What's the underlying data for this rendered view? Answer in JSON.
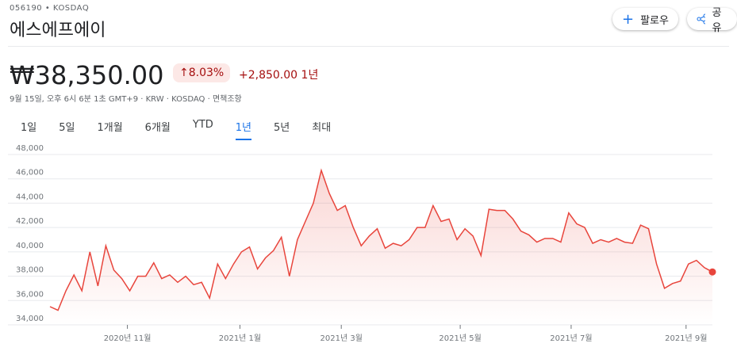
{
  "header": {
    "ticker": "056190 • KOSDAQ",
    "name": "에스에프에이",
    "price": "₩38,350.00",
    "change_percent": "8.03%",
    "change_amount": "+2,850.00",
    "change_period": "1년",
    "info": "9월 15일, 오후 6시 6분 1초 GMT+9 · KRW · KOSDAQ · 면책조항",
    "buttons": [
      "팔로우",
      "공유"
    ]
  },
  "tabs": {
    "items": [
      "1일",
      "5일",
      "1개월",
      "6개월",
      "YTD",
      "1년",
      "5년",
      "최대"
    ],
    "active": "1년"
  },
  "chart_data": {
    "type": "line",
    "color": "#e8453c",
    "grid": true,
    "values": [
      35500,
      35200,
      36800,
      38100,
      36800,
      40000,
      37200,
      40500,
      38500,
      37800,
      36800,
      38000,
      38000,
      39100,
      37800,
      38100,
      37500,
      38000,
      37300,
      37500,
      36200,
      39000,
      37800,
      39000,
      40000,
      40400,
      38600,
      39500,
      40100,
      41200,
      38000,
      41000,
      42500,
      44000,
      46700,
      44800,
      43400,
      43800,
      42000,
      40500,
      41300,
      41900,
      40300,
      40700,
      40500,
      41000,
      42000,
      42000,
      43800,
      42500,
      42700,
      41000,
      41900,
      41300,
      39700,
      43500,
      43400,
      43400,
      42700,
      41700,
      41400,
      40800,
      41100,
      41100,
      40800,
      43200,
      42300,
      42000,
      40700,
      41000,
      40800,
      41100,
      40800,
      40700,
      42200,
      41900,
      39000,
      37000,
      37400,
      37600,
      39000,
      39300,
      38700,
      38350
    ],
    "xlim": [
      0,
      83
    ],
    "xticks": [
      {
        "value": 9.7,
        "label": "2020년 11월"
      },
      {
        "value": 23.8,
        "label": "2021년 1월"
      },
      {
        "value": 36.5,
        "label": "2021년 3월"
      },
      {
        "value": 51.4,
        "label": "2021년 5월"
      },
      {
        "value": 65.3,
        "label": "2021년 7월"
      },
      {
        "value": 79.7,
        "label": "2021년 9월"
      }
    ],
    "ylim": [
      34000,
      48000
    ],
    "yticks": [
      {
        "value": 34000,
        "label": "34,000"
      },
      {
        "value": 36000,
        "label": "36,000"
      },
      {
        "value": 38000,
        "label": "38,000"
      },
      {
        "value": 40000,
        "label": "40,000"
      },
      {
        "value": 42000,
        "label": "42,000"
      },
      {
        "value": 44000,
        "label": "44,000"
      },
      {
        "value": 46000,
        "label": "46,000"
      },
      {
        "value": 48000,
        "label": "48,000"
      }
    ]
  }
}
